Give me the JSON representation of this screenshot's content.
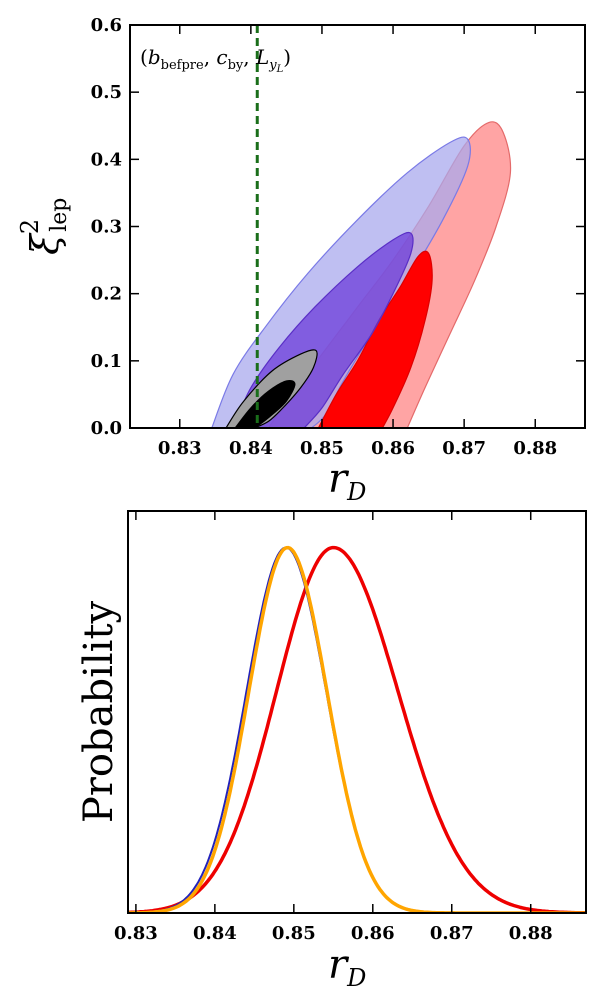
{
  "chart_data": [
    {
      "type": "contour",
      "xlabel": "r_D",
      "xlabel_main": "r",
      "xlabel_sub": "D",
      "ylabel": "ξ²_lep",
      "ylabel_main": "ξ",
      "ylabel_sup": "2",
      "ylabel_sub": "lep",
      "xlim": [
        0.823,
        0.887
      ],
      "ylim": [
        0.0,
        0.6
      ],
      "xticks": [
        "0.83",
        "0.84",
        "0.85",
        "0.86",
        "0.87",
        "0.88"
      ],
      "yticks": [
        "0.0",
        "0.1",
        "0.2",
        "0.3",
        "0.4",
        "0.5",
        "0.6"
      ],
      "annotation": "(b_befpre, c_by, L_yL)",
      "annotation_parts": {
        "open": "(",
        "b": "b",
        "b_sub": "befpre",
        "c": "c",
        "c_sub": "by",
        "L": "L",
        "L_sub": "y",
        "L_subsub": "L",
        "close": ")"
      },
      "vline": {
        "x": 0.8409,
        "color": "#1a6e1a",
        "style": "dashed"
      },
      "colors": {
        "red_outer": "#ff9a9a",
        "red_inner": "#ff0000",
        "blue_outer": "#a9a9ee",
        "blue_inner": "#6a38d8",
        "gray_outer": "#a0a0a0",
        "black_inner": "#000000",
        "overlap_outer": "#c79ad0",
        "overlap_inner": "#7a0078"
      },
      "series": [
        {
          "name": "red",
          "regions": [
            {
              "level": "2sigma",
              "points": [
                [
                  0.8425,
                  0
                ],
                [
                  0.845,
                  0.04
                ],
                [
                  0.85,
                  0.11
                ],
                [
                  0.855,
                  0.18
                ],
                [
                  0.86,
                  0.25
                ],
                [
                  0.865,
                  0.33
                ],
                [
                  0.87,
                  0.42
                ],
                [
                  0.8735,
                  0.455
                ],
                [
                  0.8755,
                  0.44
                ],
                [
                  0.8765,
                  0.38
                ],
                [
                  0.8745,
                  0.3
                ],
                [
                  0.8715,
                  0.22
                ],
                [
                  0.868,
                  0.14
                ],
                [
                  0.8645,
                  0.06
                ],
                [
                  0.862,
                  0
                ]
              ]
            },
            {
              "level": "1sigma",
              "points": [
                [
                  0.8495,
                  0
                ],
                [
                  0.852,
                  0.05
                ],
                [
                  0.855,
                  0.1
                ],
                [
                  0.858,
                  0.16
                ],
                [
                  0.861,
                  0.21
                ],
                [
                  0.8635,
                  0.255
                ],
                [
                  0.865,
                  0.26
                ],
                [
                  0.8655,
                  0.22
                ],
                [
                  0.8645,
                  0.16
                ],
                [
                  0.8625,
                  0.09
                ],
                [
                  0.86,
                  0.03
                ],
                [
                  0.8585,
                  0
                ]
              ]
            }
          ]
        },
        {
          "name": "blue",
          "regions": [
            {
              "level": "2sigma",
              "points": [
                [
                  0.8345,
                  0
                ],
                [
                  0.8375,
                  0.08
                ],
                [
                  0.842,
                  0.15
                ],
                [
                  0.848,
                  0.23
                ],
                [
                  0.855,
                  0.31
                ],
                [
                  0.862,
                  0.38
                ],
                [
                  0.868,
                  0.425
                ],
                [
                  0.8705,
                  0.43
                ],
                [
                  0.8705,
                  0.39
                ],
                [
                  0.867,
                  0.31
                ],
                [
                  0.862,
                  0.22
                ],
                [
                  0.857,
                  0.14
                ],
                [
                  0.853,
                  0.07
                ],
                [
                  0.8505,
                  0.02
                ],
                [
                  0.8485,
                  0
                ]
              ]
            },
            {
              "level": "1sigma",
              "points": [
                [
                  0.8375,
                  0
                ],
                [
                  0.84,
                  0.06
                ],
                [
                  0.844,
                  0.12
                ],
                [
                  0.849,
                  0.18
                ],
                [
                  0.855,
                  0.24
                ],
                [
                  0.86,
                  0.28
                ],
                [
                  0.8625,
                  0.29
                ],
                [
                  0.8625,
                  0.26
                ],
                [
                  0.86,
                  0.2
                ],
                [
                  0.857,
                  0.14
                ],
                [
                  0.853,
                  0.08
                ],
                [
                  0.85,
                  0.03
                ],
                [
                  0.8475,
                  0
                ]
              ]
            }
          ]
        },
        {
          "name": "black",
          "regions": [
            {
              "level": "2sigma",
              "points": [
                [
                  0.8365,
                  0
                ],
                [
                  0.839,
                  0.04
                ],
                [
                  0.843,
                  0.085
                ],
                [
                  0.847,
                  0.11
                ],
                [
                  0.8492,
                  0.115
                ],
                [
                  0.8488,
                  0.09
                ],
                [
                  0.847,
                  0.06
                ],
                [
                  0.8445,
                  0.03
                ],
                [
                  0.8425,
                  0.01
                ],
                [
                  0.8405,
                  0
                ]
              ]
            },
            {
              "level": "1sigma",
              "points": [
                [
                  0.8378,
                  0
                ],
                [
                  0.84,
                  0.03
                ],
                [
                  0.8425,
                  0.055
                ],
                [
                  0.845,
                  0.07
                ],
                [
                  0.8462,
                  0.065
                ],
                [
                  0.845,
                  0.04
                ],
                [
                  0.843,
                  0.02
                ],
                [
                  0.8412,
                  0.005
                ],
                [
                  0.8402,
                  0
                ]
              ]
            }
          ]
        }
      ]
    },
    {
      "type": "line",
      "xlabel": "r_D",
      "xlabel_main": "r",
      "xlabel_sub": "D",
      "ylabel": "Probability",
      "xlim": [
        0.829,
        0.887
      ],
      "ylim": [
        0,
        1.1
      ],
      "xticks": [
        "0.83",
        "0.84",
        "0.85",
        "0.86",
        "0.87",
        "0.88"
      ],
      "series": [
        {
          "name": "red",
          "color": "#ee0000",
          "mu": 0.855,
          "sigma_left": 0.0072,
          "sigma_right": 0.0082,
          "peak": 1.0
        },
        {
          "name": "blue",
          "color": "#2222bb",
          "mu": 0.849,
          "sigma_left": 0.005,
          "sigma_right": 0.0051,
          "peak": 1.0
        },
        {
          "name": "orange",
          "color": "#ffa500",
          "mu": 0.8492,
          "sigma_left": 0.0049,
          "sigma_right": 0.005,
          "peak": 1.0
        }
      ]
    }
  ]
}
